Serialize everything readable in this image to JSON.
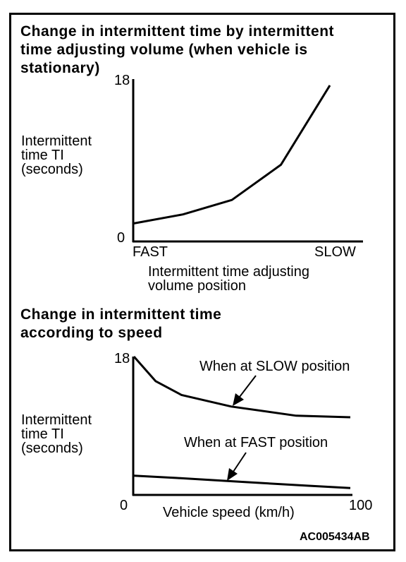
{
  "figure_code": "AC005434AB",
  "chart_data": [
    {
      "type": "line",
      "title": "Change in intermittent time by intermittent\ntime adjusting volume (when vehicle is\nstationary)",
      "ylabel": "Intermittent\ntime TI\n(seconds)",
      "xlabel": "Intermittent time adjusting\nvolume position",
      "x_tick_labels": [
        "FAST",
        "SLOW"
      ],
      "y_tick_labels": [
        "0",
        "18"
      ],
      "ylim": [
        0,
        18
      ],
      "xlim": [
        0,
        100
      ],
      "grid": false,
      "series": [
        {
          "x": [
            0,
            25,
            50,
            75,
            100
          ],
          "y": [
            2.0,
            3.0,
            4.6,
            8.5,
            17.3
          ]
        }
      ]
    },
    {
      "type": "line",
      "title": "Change in intermittent time\naccording to speed",
      "ylabel": "Intermittent\ntime TI\n(seconds)",
      "xlabel": "Vehicle speed  (km/h)",
      "x_tick_labels": [
        "0",
        "100"
      ],
      "y_tick_labels": [
        "18"
      ],
      "ylim": [
        0,
        18
      ],
      "xlim": [
        0,
        100
      ],
      "grid": false,
      "annotations": [
        "When at SLOW position",
        "When at FAST position"
      ],
      "series": [
        {
          "x": [
            0,
            10,
            22,
            45,
            75,
            100
          ],
          "y": [
            18,
            14.8,
            13.0,
            11.5,
            10.3,
            10.1
          ]
        },
        {
          "x": [
            0,
            20,
            50,
            80,
            100
          ],
          "y": [
            2.5,
            2.2,
            1.7,
            1.2,
            0.9
          ]
        }
      ]
    }
  ]
}
